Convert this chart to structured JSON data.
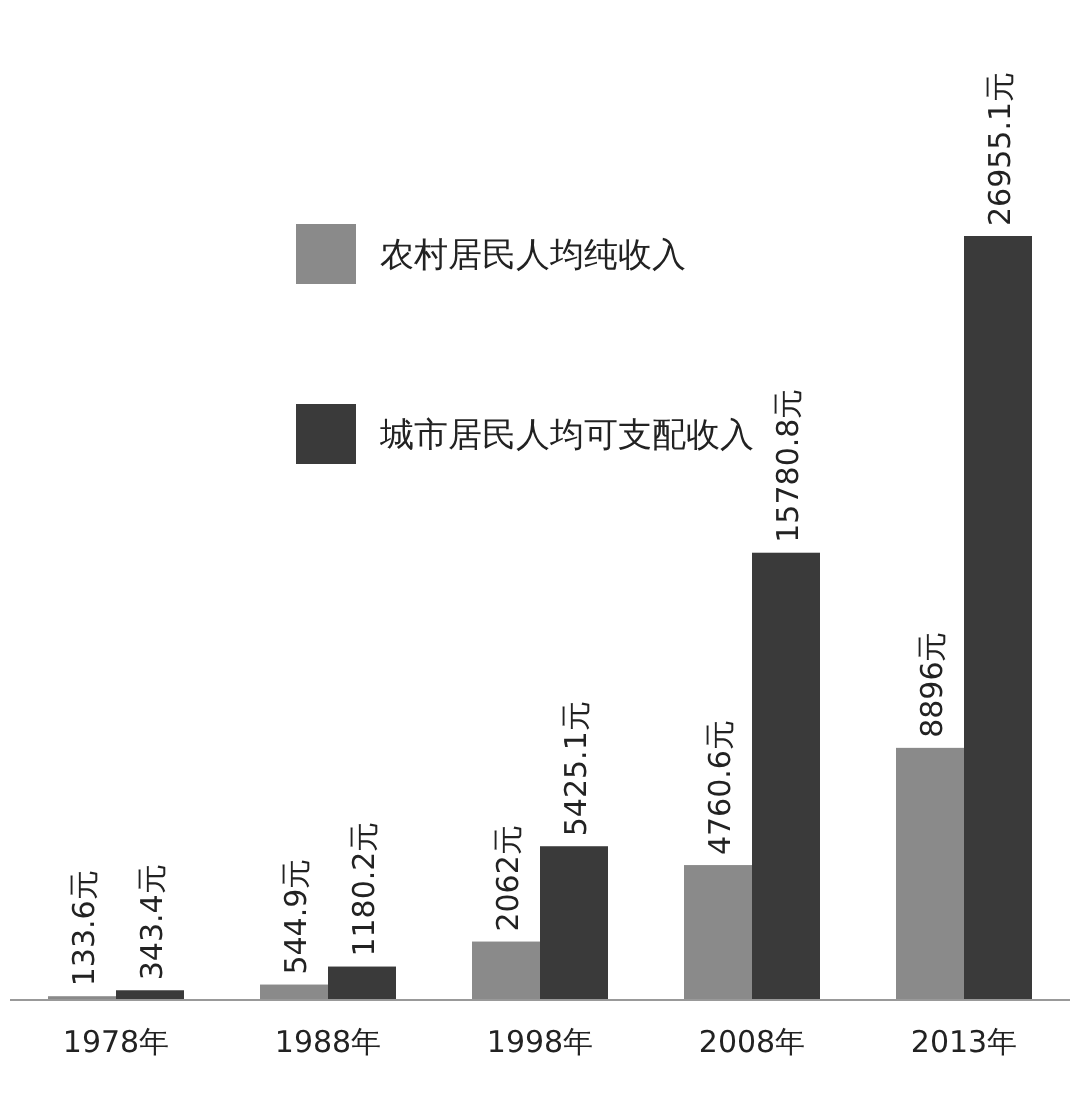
{
  "chart_data": {
    "type": "bar",
    "categories": [
      "1978年",
      "1988年",
      "1998年",
      "2008年",
      "2013年"
    ],
    "series": [
      {
        "name": "农村居民人均纯收入",
        "color": "#8a8a8a",
        "values": [
          133.6,
          544.9,
          2062,
          4760.6,
          8896
        ],
        "value_labels": [
          "133.6元",
          "544.9元",
          "2062元",
          "4760.6元",
          "8896元"
        ]
      },
      {
        "name": "城市居民人均可支配收入",
        "color": "#3a3a3a",
        "values": [
          343.4,
          1180.2,
          5425.1,
          15780.8,
          26955.1
        ],
        "value_labels": [
          "343.4元",
          "1180.2元",
          "5425.1元",
          "15780.8元",
          "26955.1元"
        ]
      }
    ],
    "legend": "top"
  }
}
